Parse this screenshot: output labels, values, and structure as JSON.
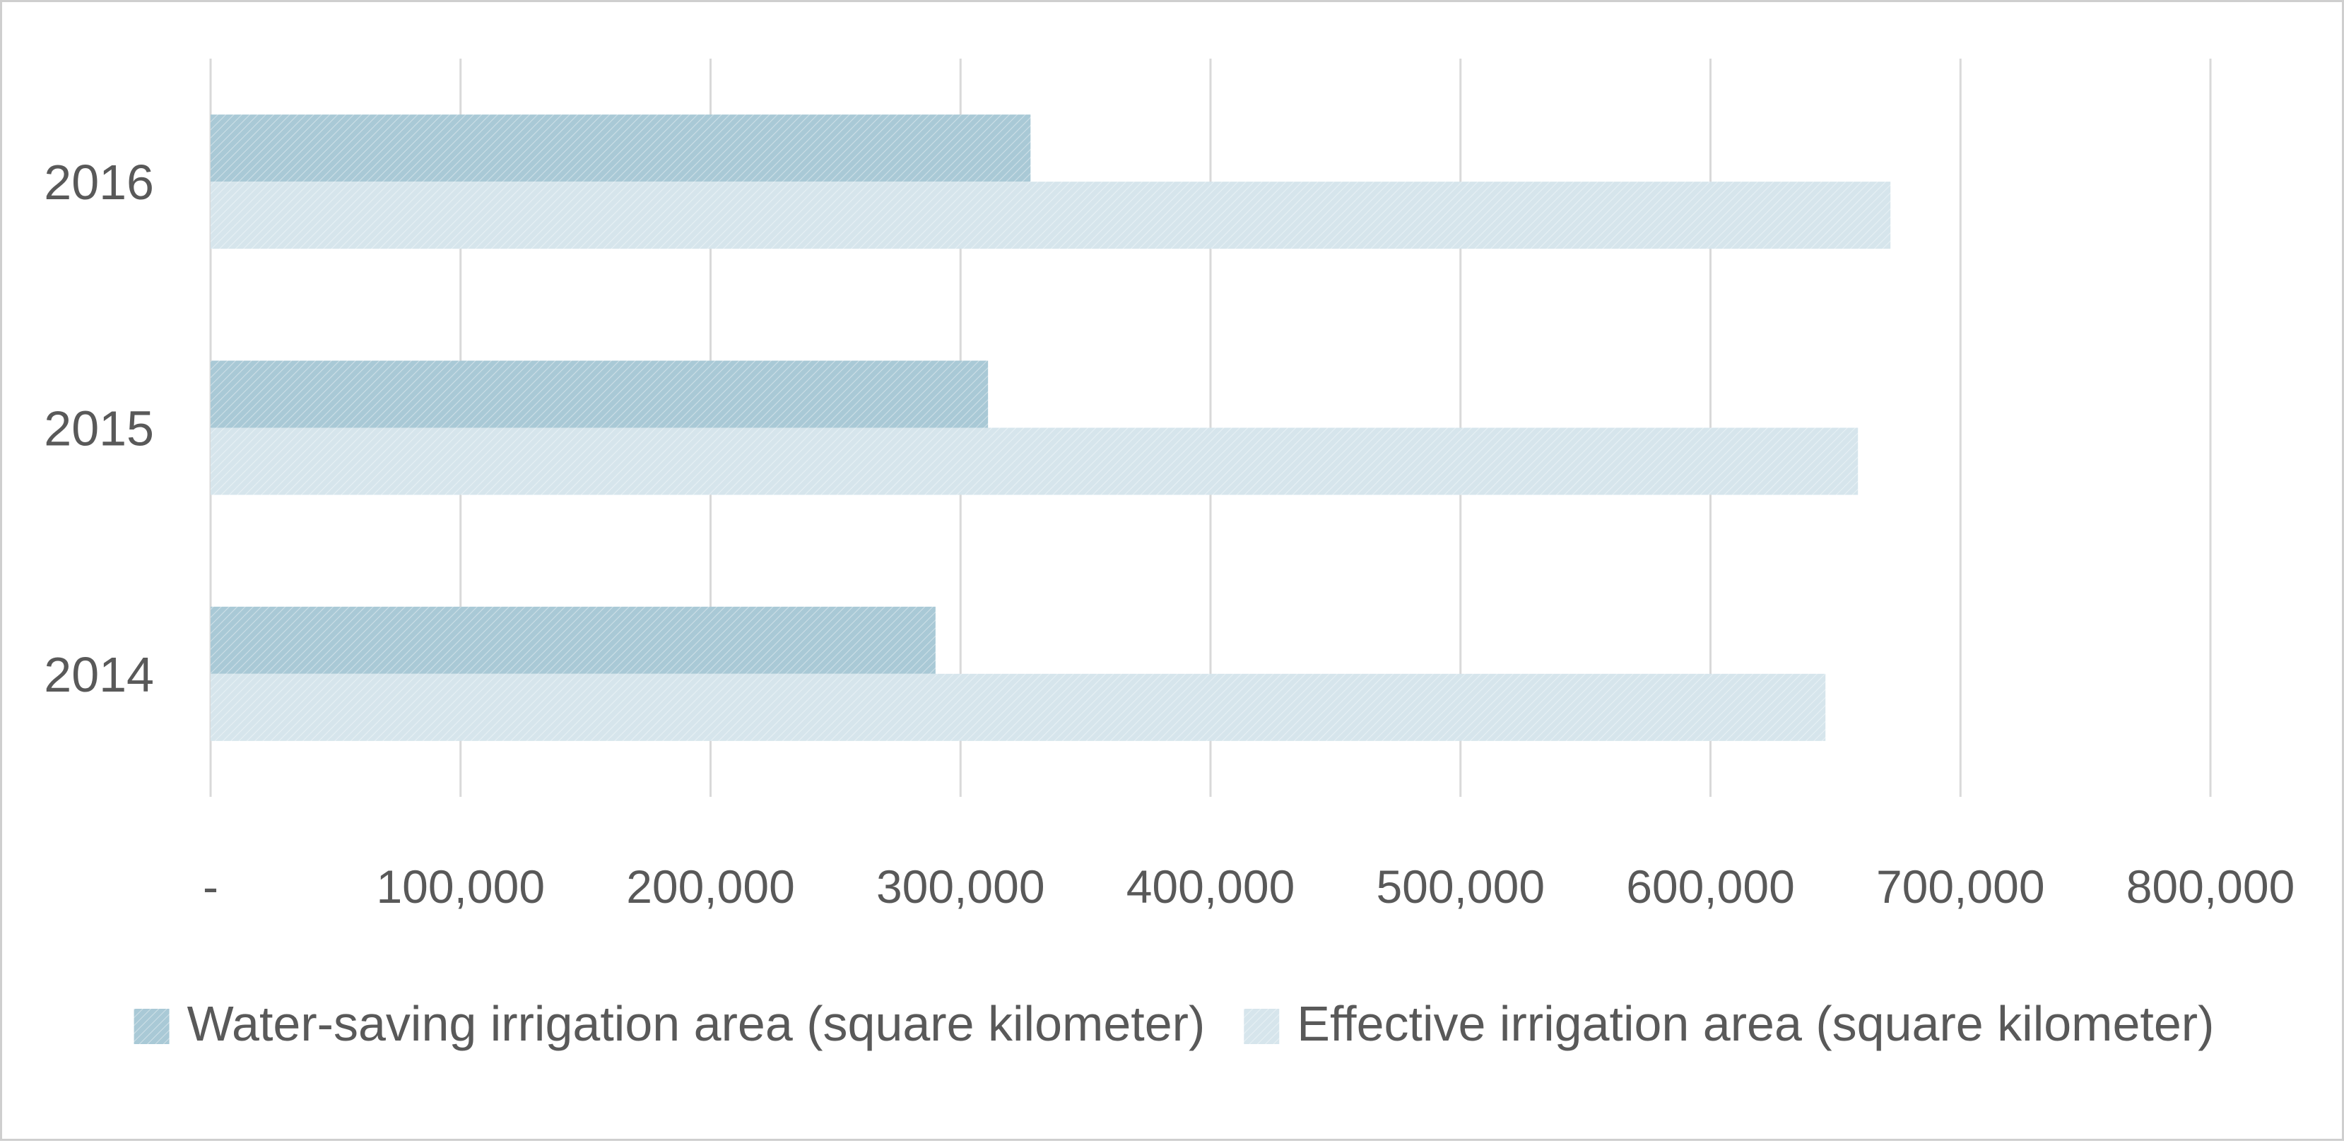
{
  "chart_data": {
    "type": "bar",
    "orientation": "horizontal",
    "categories": [
      "2016",
      "2015",
      "2014"
    ],
    "series": [
      {
        "name": "Water-saving irrigation area (square kilometer)",
        "values": [
          328000,
          311000,
          290000
        ],
        "color": "#a9c9d6"
      },
      {
        "name": "Effective irrigation area (square kilometer)",
        "values": [
          672000,
          659000,
          646000
        ],
        "color": "#d6e5ec"
      }
    ],
    "xlim": [
      0,
      800000
    ],
    "x_ticks": [
      0,
      100000,
      200000,
      300000,
      400000,
      500000,
      600000,
      700000,
      800000
    ],
    "x_tick_labels": [
      "-",
      "100,000",
      "200,000",
      "300,000",
      "400,000",
      "500,000",
      "600,000",
      "700,000",
      "800,000"
    ],
    "title": "",
    "xlabel": "",
    "ylabel": "",
    "grid": "vertical",
    "legend_position": "bottom",
    "grid_color": "#d9d9d9"
  }
}
